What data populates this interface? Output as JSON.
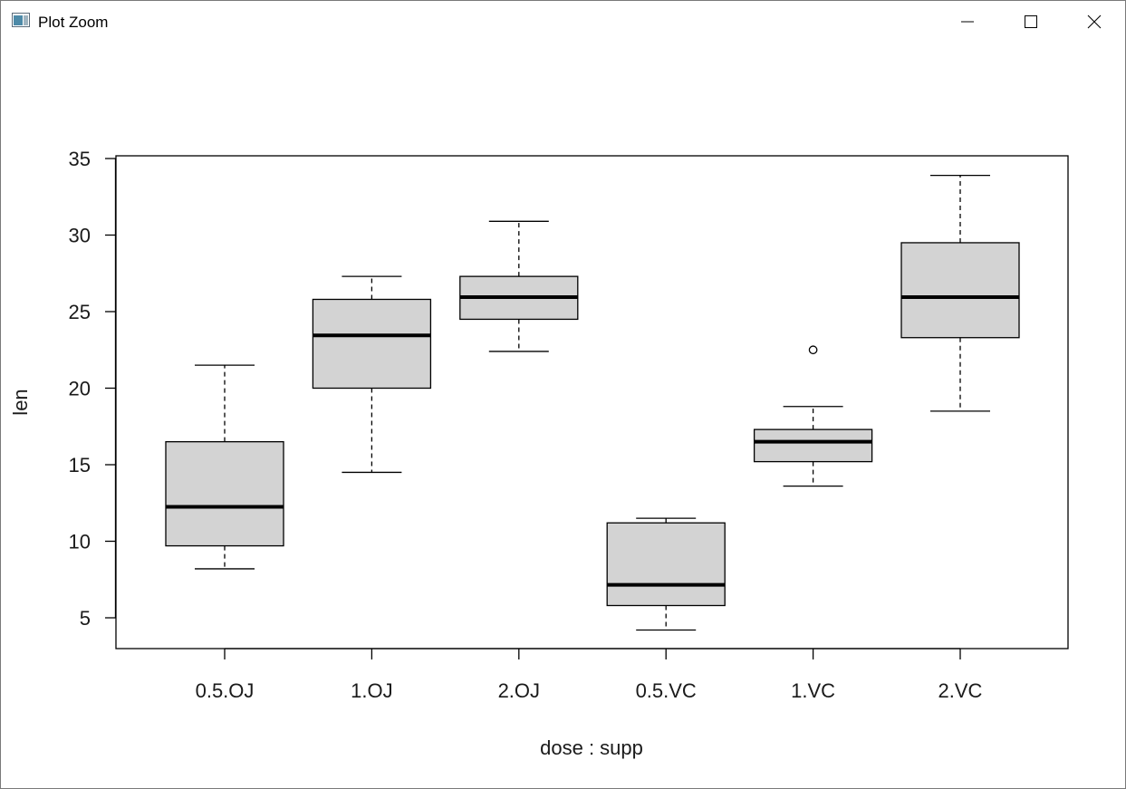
{
  "window": {
    "title": "Plot Zoom",
    "icons": {
      "app": "plot-window-icon",
      "minimize": "minimize-icon",
      "maximize": "maximize-icon",
      "close": "close-icon"
    }
  },
  "colors": {
    "box_fill": "#d3d3d3",
    "stroke": "#000000",
    "text": "#1a1a1a"
  },
  "chart_data": {
    "type": "boxplot",
    "title": "",
    "xlabel": "dose : supp",
    "ylabel": "len",
    "ylim": [
      3,
      35
    ],
    "yticks": [
      5,
      10,
      15,
      20,
      25,
      30,
      35
    ],
    "categories": [
      "0.5.OJ",
      "1.OJ",
      "2.OJ",
      "0.5.VC",
      "1.VC",
      "2.VC"
    ],
    "boxes": [
      {
        "category": "0.5.OJ",
        "whisker_low": 8.2,
        "q1": 9.7,
        "median": 12.25,
        "q3": 16.5,
        "whisker_high": 21.5,
        "outliers": []
      },
      {
        "category": "1.OJ",
        "whisker_low": 14.5,
        "q1": 20.0,
        "median": 23.45,
        "q3": 25.8,
        "whisker_high": 27.3,
        "outliers": []
      },
      {
        "category": "2.OJ",
        "whisker_low": 22.4,
        "q1": 24.5,
        "median": 25.95,
        "q3": 27.3,
        "whisker_high": 30.9,
        "outliers": []
      },
      {
        "category": "0.5.VC",
        "whisker_low": 4.2,
        "q1": 5.8,
        "median": 7.15,
        "q3": 11.2,
        "whisker_high": 11.5,
        "outliers": []
      },
      {
        "category": "1.VC",
        "whisker_low": 13.6,
        "q1": 15.2,
        "median": 16.5,
        "q3": 17.3,
        "whisker_high": 18.8,
        "outliers": [
          22.5
        ]
      },
      {
        "category": "2.VC",
        "whisker_low": 18.5,
        "q1": 23.3,
        "median": 25.95,
        "q3": 29.5,
        "whisker_high": 33.9,
        "outliers": []
      }
    ]
  }
}
